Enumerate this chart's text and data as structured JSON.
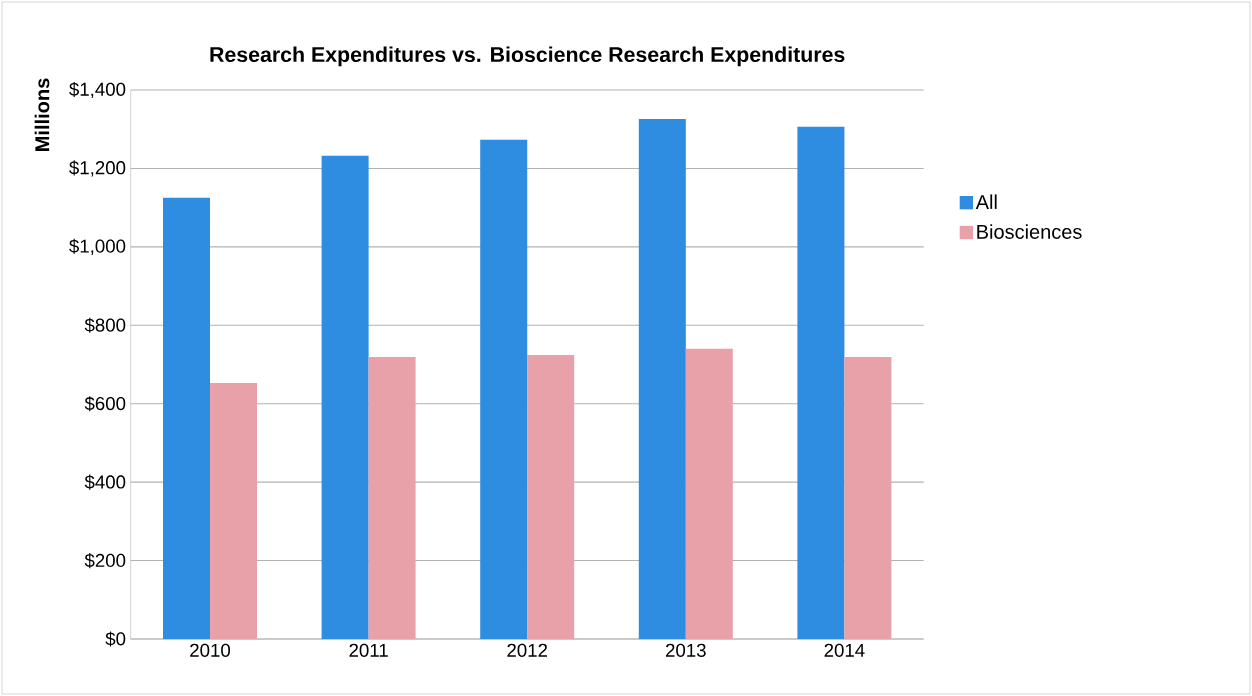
{
  "chart_data": {
    "type": "bar",
    "title": "Research Expenditures vs. Bioscience Research Expenditures",
    "ylabel": "Millions",
    "categories": [
      "2010",
      "2011",
      "2012",
      "2013",
      "2014"
    ],
    "series": [
      {
        "name": "All",
        "color": "#2e8de0",
        "values": [
          1125,
          1232,
          1273,
          1326,
          1306
        ]
      },
      {
        "name": "Biosciences",
        "color": "#e8a1a8",
        "values": [
          653,
          719,
          724,
          740,
          719
        ]
      }
    ],
    "ylim": [
      0,
      1400
    ],
    "yticks": [
      {
        "value": 0,
        "label": "$0"
      },
      {
        "value": 200,
        "label": "$200"
      },
      {
        "value": 400,
        "label": "$400"
      },
      {
        "value": 600,
        "label": "$600"
      },
      {
        "value": 800,
        "label": "$800"
      },
      {
        "value": 1000,
        "label": "$1,000"
      },
      {
        "value": 1200,
        "label": "$1,200"
      },
      {
        "value": 1400,
        "label": "$1,400"
      }
    ],
    "grid": "y",
    "legend": "right"
  }
}
